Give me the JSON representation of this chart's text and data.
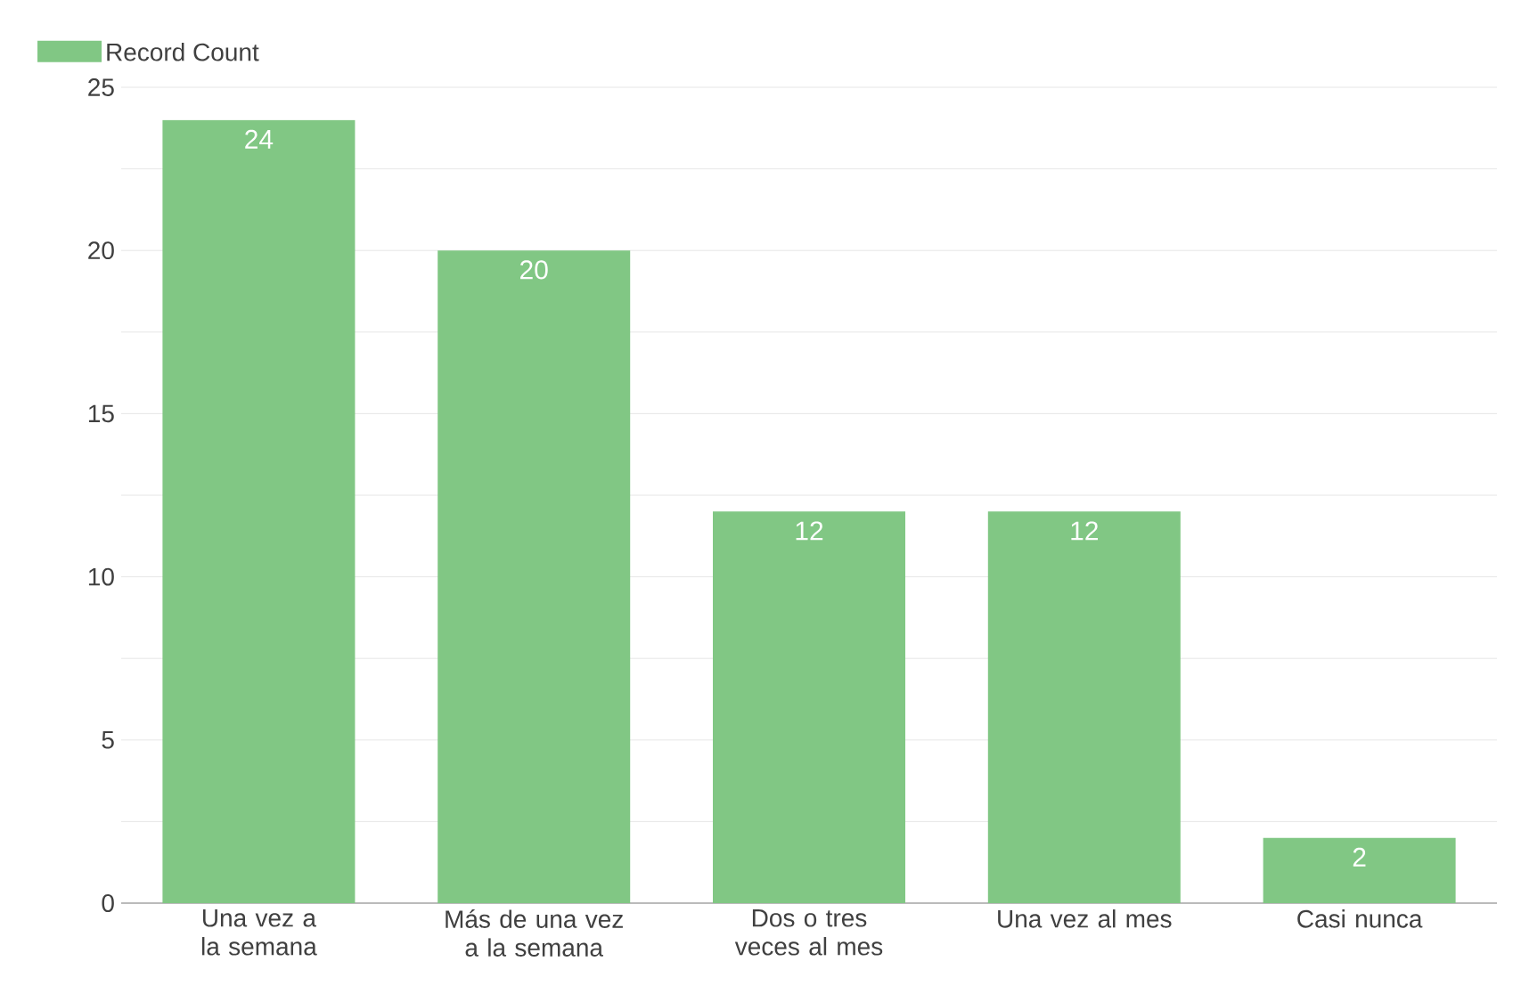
{
  "chart_data": {
    "type": "bar",
    "categories": [
      "Una vez a la semana",
      "Más de una vez a la semana",
      "Dos o tres veces al mes",
      "Una vez al mes",
      "Casi nunca"
    ],
    "series": [
      {
        "name": "Record Count",
        "color": "#81c784",
        "values": [
          24,
          20,
          12,
          12,
          2
        ]
      }
    ],
    "ylim": [
      0,
      25
    ],
    "yticks": [
      0,
      {
        "value": 2.5,
        "label": null
      },
      5,
      {
        "value": 7.5,
        "label": null
      },
      10,
      {
        "value": 12.5,
        "label": null
      },
      15,
      {
        "value": 17.5,
        "label": null
      },
      20,
      {
        "value": 22.5,
        "label": null
      },
      25
    ],
    "grid": "y",
    "legend": "top left",
    "data_labels": true
  }
}
